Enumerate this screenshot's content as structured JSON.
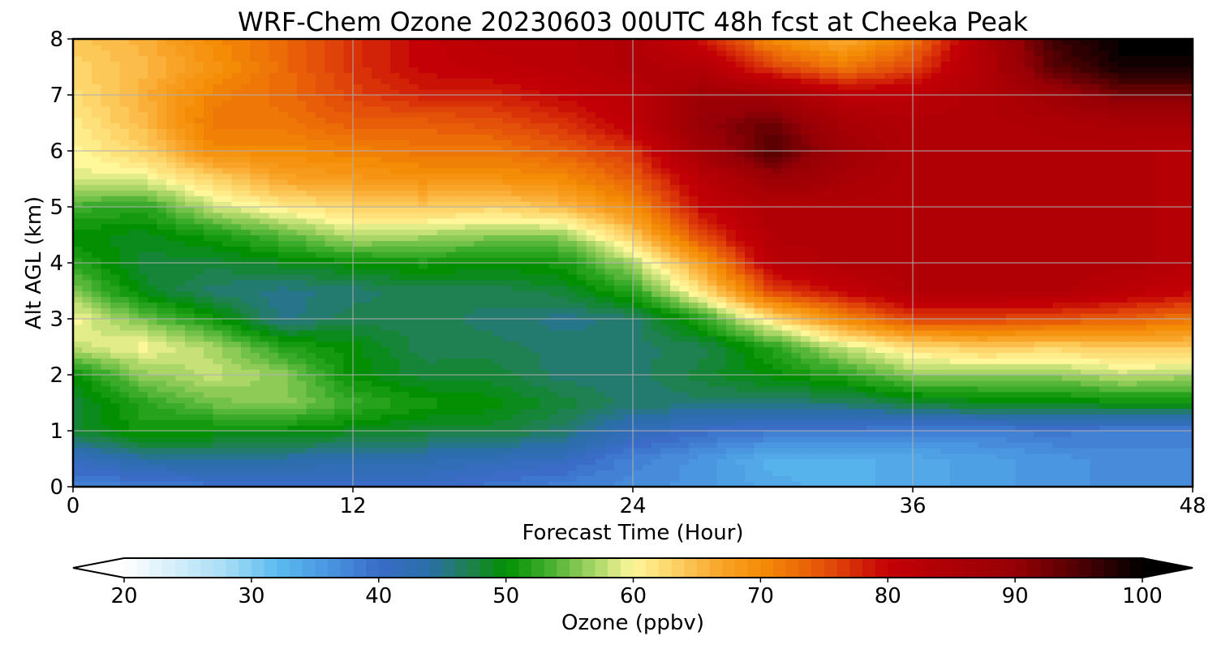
{
  "chart_data": {
    "type": "heatmap",
    "title": "WRF-Chem Ozone  20230603 00UTC 48h fcst at Cheeka Peak",
    "xlabel": "Forecast Time (Hour)",
    "ylabel": "Alt AGL (km)",
    "xlim": [
      0,
      48
    ],
    "ylim": [
      0,
      8
    ],
    "x_ticks": [
      0,
      12,
      24,
      36,
      48
    ],
    "y_ticks": [
      0,
      1,
      2,
      3,
      4,
      5,
      6,
      7,
      8
    ],
    "grid": true,
    "colorbar": {
      "label": "Ozone  (ppbv)",
      "min": 20,
      "max": 100,
      "step": 1,
      "ticks": [
        20,
        30,
        40,
        50,
        60,
        70,
        80,
        90,
        100
      ],
      "extend": "both",
      "orientation": "horizontal",
      "placement": "bottom"
    },
    "colormap": [
      [
        20,
        "#ffffff"
      ],
      [
        28,
        "#a8ddf5"
      ],
      [
        32,
        "#5bbcf0"
      ],
      [
        36,
        "#4a96e0"
      ],
      [
        40,
        "#3a6cc8"
      ],
      [
        44,
        "#2a6fa8"
      ],
      [
        47,
        "#1f8052"
      ],
      [
        50,
        "#029002"
      ],
      [
        53,
        "#3aab2a"
      ],
      [
        57,
        "#a9d665"
      ],
      [
        60,
        "#fff79a"
      ],
      [
        63,
        "#fdd56a"
      ],
      [
        67,
        "#f9a327"
      ],
      [
        70,
        "#f48c06"
      ],
      [
        73,
        "#ec6c07"
      ],
      [
        76,
        "#e04309"
      ],
      [
        80,
        "#c30005"
      ],
      [
        85,
        "#ac0005"
      ],
      [
        90,
        "#960005"
      ],
      [
        95,
        "#4f0003"
      ],
      [
        100,
        "#000000"
      ]
    ],
    "x": [
      0,
      3,
      6,
      9,
      12,
      15,
      18,
      21,
      24,
      27,
      30,
      33,
      36,
      39,
      42,
      45,
      48
    ],
    "y": [
      0,
      0.5,
      1,
      1.5,
      2,
      2.5,
      3,
      3.5,
      4,
      4.5,
      5,
      5.5,
      6,
      6.5,
      7,
      7.5,
      8
    ],
    "z": [
      [
        38,
        38,
        39,
        40,
        40,
        40,
        39,
        38,
        37,
        36,
        34,
        33,
        34,
        35,
        36,
        37,
        37
      ],
      [
        41,
        44,
        45,
        44,
        43,
        43,
        42,
        41,
        38,
        36,
        33,
        33,
        34,
        35,
        36,
        37,
        37
      ],
      [
        48,
        51,
        50,
        50,
        49,
        48,
        48,
        46,
        42,
        40,
        39,
        39,
        38,
        38,
        39,
        38,
        38
      ],
      [
        48,
        52,
        55,
        56,
        53,
        51,
        50,
        48,
        46,
        46,
        46,
        46,
        48,
        49,
        49,
        50,
        50
      ],
      [
        50,
        56,
        58,
        56,
        50,
        48,
        48,
        46,
        46,
        48,
        50,
        52,
        56,
        56,
        56,
        58,
        57
      ],
      [
        58,
        60,
        57,
        52,
        50,
        47,
        47,
        46,
        46,
        47,
        52,
        58,
        62,
        64,
        63,
        64,
        64
      ],
      [
        60,
        55,
        51,
        45,
        47,
        47,
        46,
        45,
        46,
        52,
        62,
        70,
        76,
        76,
        75,
        74,
        72
      ],
      [
        56,
        49,
        46,
        45,
        46,
        47,
        47,
        48,
        52,
        62,
        76,
        80,
        84,
        84,
        84,
        82,
        80
      ],
      [
        52,
        48,
        48,
        49,
        50,
        51,
        50,
        51,
        57,
        68,
        82,
        84,
        84,
        84,
        84,
        84,
        83
      ],
      [
        50,
        49,
        51,
        54,
        58,
        57,
        56,
        56,
        64,
        76,
        84,
        84,
        84,
        84,
        84,
        84,
        83
      ],
      [
        53,
        52,
        58,
        61,
        63,
        64,
        63,
        65,
        70,
        80,
        84,
        84,
        84,
        84,
        84,
        84,
        83
      ],
      [
        59,
        59,
        63,
        67,
        68,
        69,
        69,
        70,
        74,
        82,
        89,
        86,
        84,
        84,
        84,
        84,
        83
      ],
      [
        60,
        63,
        70,
        70,
        71,
        72,
        72,
        74,
        77,
        87,
        95,
        88,
        84,
        84,
        84,
        84,
        83
      ],
      [
        61,
        65,
        72,
        72,
        74,
        74,
        75,
        77,
        81,
        90,
        93,
        86,
        84,
        84,
        85,
        86,
        86
      ],
      [
        62,
        66,
        71,
        73,
        76,
        78,
        78,
        80,
        82,
        88,
        87,
        82,
        82,
        84,
        88,
        92,
        92
      ],
      [
        63,
        65,
        69,
        73,
        77,
        80,
        81,
        82,
        84,
        83,
        76,
        72,
        76,
        84,
        94,
        99,
        99
      ],
      [
        64,
        66,
        70,
        73,
        77,
        80,
        82,
        82,
        84,
        79,
        70,
        66,
        72,
        84,
        96,
        100,
        100
      ]
    ]
  }
}
